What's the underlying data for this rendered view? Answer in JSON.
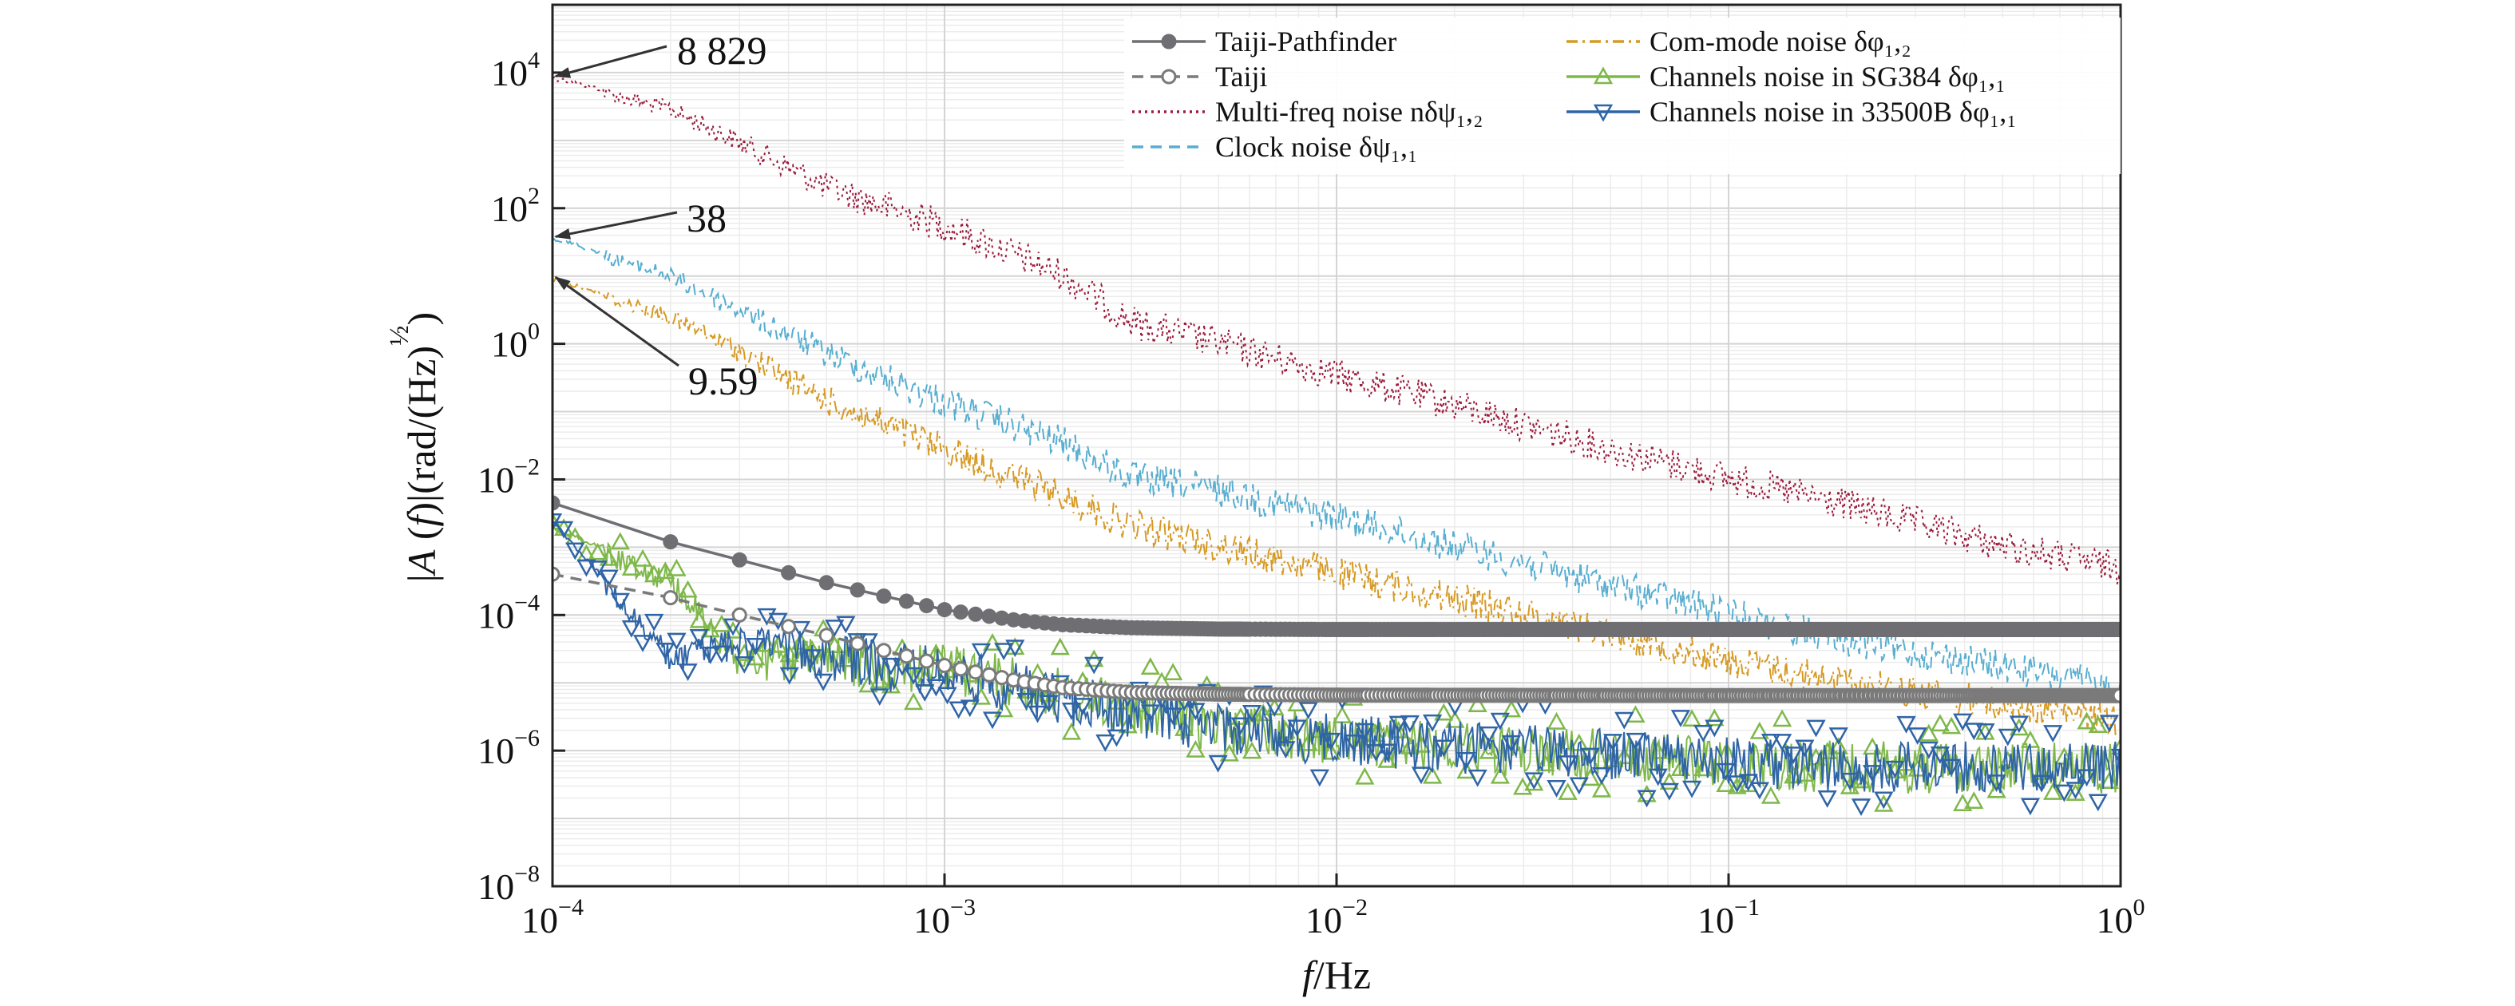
{
  "chart_data": {
    "type": "line",
    "xscale": "log",
    "yscale": "log",
    "xlim": [
      0.0001,
      1
    ],
    "ylim": [
      1e-08,
      100000.0
    ],
    "grid": true,
    "legend_placement": "top-right",
    "xlabel": "f/Hz",
    "ylabel": "|A (f)|(rad/(Hz)^(1/2))",
    "x_ticks": [
      {
        "base": "10",
        "exp": "−4",
        "value": 0.0001
      },
      {
        "base": "10",
        "exp": "−3",
        "value": 0.001
      },
      {
        "base": "10",
        "exp": "−2",
        "value": 0.01
      },
      {
        "base": "10",
        "exp": "−1",
        "value": 0.1
      },
      {
        "base": "10",
        "exp": "0",
        "value": 1
      }
    ],
    "y_ticks": [
      {
        "base": "10",
        "exp": "−8",
        "value": 1e-08
      },
      {
        "base": "10",
        "exp": "−6",
        "value": 1e-06
      },
      {
        "base": "10",
        "exp": "−4",
        "value": 0.0001
      },
      {
        "base": "10",
        "exp": "−2",
        "value": 0.01
      },
      {
        "base": "10",
        "exp": "0",
        "value": 1
      },
      {
        "base": "10",
        "exp": "2",
        "value": 100
      },
      {
        "base": "10",
        "exp": "4",
        "value": 10000
      }
    ],
    "annotations": [
      {
        "text": "8 829",
        "x": 0.0001,
        "y": 8829
      },
      {
        "text": "38",
        "x": 0.0001,
        "y": 38
      },
      {
        "text": "9.59",
        "x": 0.0001,
        "y": 9.59
      }
    ],
    "series": [
      {
        "name": "Taiji-Pathfinder",
        "color": "#6e6e73",
        "style": "solid",
        "marker": "filled-circle",
        "x": [
          0.0001,
          0.0002,
          0.0003,
          0.0005,
          0.0007,
          0.001,
          0.0015,
          0.002,
          0.003,
          0.005,
          0.01,
          0.1,
          1
        ],
        "y": [
          0.0045,
          0.0012,
          0.00065,
          0.0003,
          0.00019,
          0.00012,
          8.5e-05,
          7.2e-05,
          6.5e-05,
          6.2e-05,
          6.1e-05,
          6.1e-05,
          6.1e-05
        ]
      },
      {
        "name": "Taiji",
        "color": "#7a7a7a",
        "style": "dashed",
        "marker": "open-circle",
        "x": [
          0.0001,
          0.0002,
          0.0003,
          0.0005,
          0.0007,
          0.001,
          0.0015,
          0.002,
          0.003,
          0.005,
          0.01,
          0.1,
          1
        ],
        "y": [
          0.0004,
          0.00018,
          0.0001,
          5e-05,
          3e-05,
          1.8e-05,
          1.1e-05,
          8.5e-06,
          7.2e-06,
          6.8e-06,
          6.6e-06,
          6.5e-06,
          6.5e-06
        ]
      },
      {
        "name": "Multi-freq noise nδψ₁,₂",
        "color": "#9b1c3c",
        "style": "dotted",
        "marker": "none",
        "x": [
          0.0001,
          0.0002,
          0.0003,
          0.0005,
          0.001,
          0.002,
          0.003,
          0.005,
          0.01,
          0.02,
          0.05,
          0.1,
          0.2,
          0.5,
          1
        ],
        "y": [
          8829,
          3500,
          1200,
          280,
          80,
          15,
          3,
          1.5,
          0.5,
          0.18,
          0.04,
          0.015,
          0.006,
          0.0015,
          0.0007
        ]
      },
      {
        "name": "Clock noise δψ₁,₁",
        "color": "#58aed0",
        "style": "dashed",
        "marker": "none",
        "x": [
          0.0001,
          0.0002,
          0.0003,
          0.0005,
          0.001,
          0.002,
          0.003,
          0.005,
          0.01,
          0.02,
          0.05,
          0.1,
          0.2,
          0.5,
          1
        ],
        "y": [
          38,
          12,
          4,
          1,
          0.2,
          0.05,
          0.015,
          0.01,
          0.004,
          0.0015,
          0.0004,
          0.00015,
          6e-05,
          2.5e-05,
          1.2e-05
        ]
      },
      {
        "name": "Com-mode noise δφ₁,₂",
        "color": "#d69a24",
        "style": "dash-dot",
        "marker": "none",
        "x": [
          0.0001,
          0.0002,
          0.0003,
          0.0005,
          0.001,
          0.002,
          0.003,
          0.005,
          0.01,
          0.02,
          0.05,
          0.1,
          0.2,
          0.5,
          1
        ],
        "y": [
          9.59,
          3,
          1,
          0.2,
          0.04,
          0.008,
          0.003,
          0.0015,
          0.0006,
          0.00025,
          8e-05,
          3e-05,
          1.5e-05,
          7e-06,
          4e-06
        ]
      },
      {
        "name": "Channels noise in SG384 δφ₁,₁",
        "color": "#7fb84a",
        "style": "solid",
        "marker": "open-triangle-up",
        "x": [
          0.0001,
          0.0002,
          0.0003,
          0.0005,
          0.001,
          0.002,
          0.005,
          0.01,
          0.02,
          0.05,
          0.1,
          0.2,
          0.5,
          1
        ],
        "y": [
          0.002,
          0.00045,
          3e-05,
          3.5e-05,
          3e-05,
          1.2e-05,
          4e-06,
          2.5e-06,
          2e-06,
          1.5e-06,
          1.2e-06,
          1e-06,
          1e-06,
          1e-06
        ]
      },
      {
        "name": "Channels noise in 33500B δφ₁,₁",
        "color": "#2f64a6",
        "style": "solid",
        "marker": "open-triangle-down",
        "x": [
          0.0001,
          0.0002,
          0.0003,
          0.0005,
          0.001,
          0.002,
          0.005,
          0.01,
          0.02,
          0.05,
          0.1,
          0.2,
          0.5,
          1
        ],
        "y": [
          0.0025,
          3e-05,
          6e-05,
          4e-05,
          2.5e-05,
          1e-05,
          4e-06,
          2.5e-06,
          2e-06,
          1.5e-06,
          1.2e-06,
          1e-06,
          1e-06,
          1e-06
        ]
      }
    ]
  }
}
